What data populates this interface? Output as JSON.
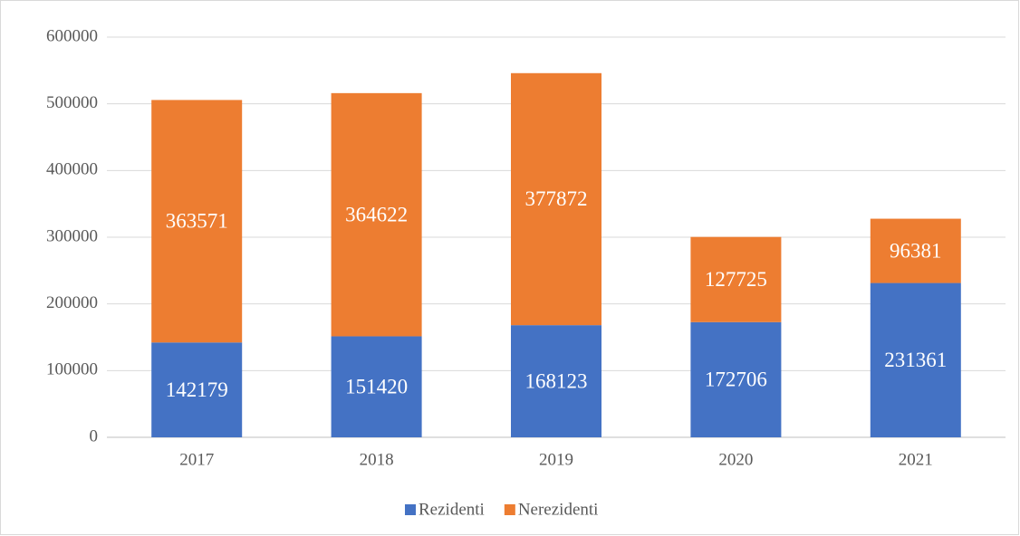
{
  "chart_data": {
    "type": "bar",
    "stacked": true,
    "categories": [
      "2017",
      "2018",
      "2019",
      "2020",
      "2021"
    ],
    "series": [
      {
        "name": "Rezidenti",
        "color": "#4472c4",
        "values": [
          142179,
          151420,
          168123,
          172706,
          231361
        ]
      },
      {
        "name": "Nerezidenti",
        "color": "#ed7d31",
        "values": [
          363571,
          364622,
          377872,
          127725,
          96381
        ]
      }
    ],
    "ylim": [
      0,
      600000
    ],
    "yticks": [
      0,
      100000,
      200000,
      300000,
      400000,
      500000,
      600000
    ],
    "grid": true,
    "legend": "bottom"
  }
}
